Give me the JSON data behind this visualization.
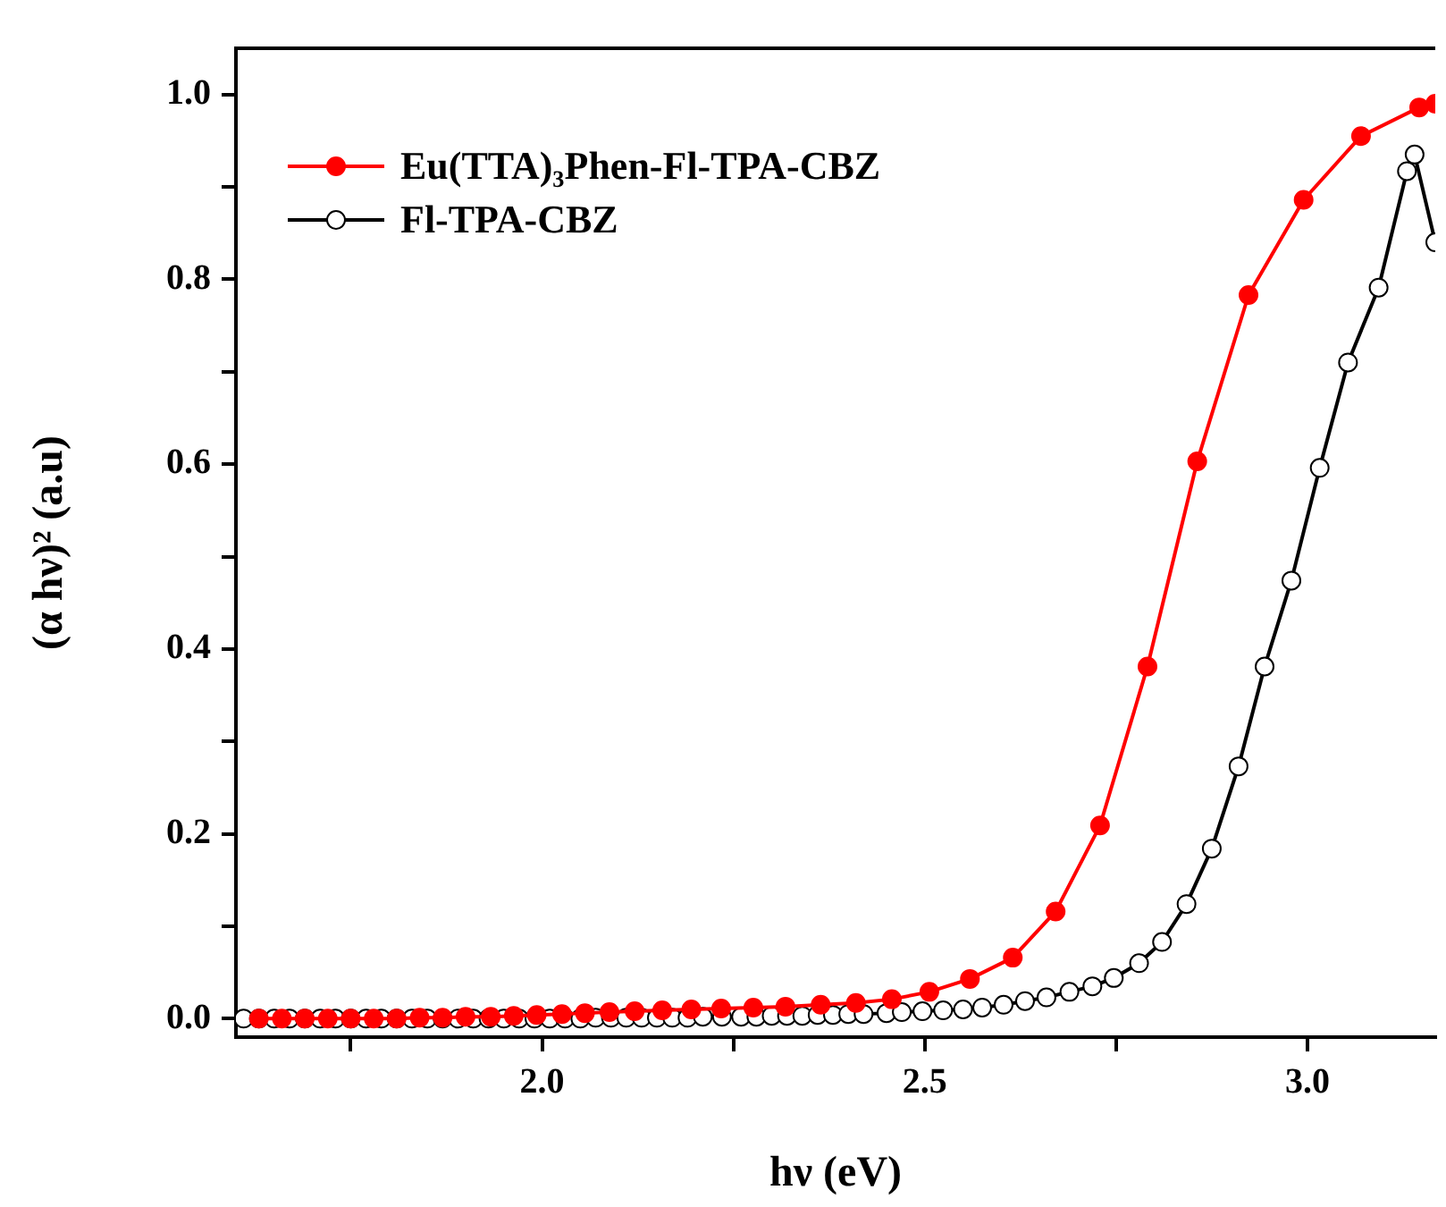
{
  "chart_data": {
    "type": "line",
    "xlabel": "hν (eV)",
    "ylabel": "(α hν)² (a.u)",
    "xlim": [
      1.6,
      3.167
    ],
    "ylim": [
      -0.02,
      1.05
    ],
    "xticks": [
      {
        "value": 1.75,
        "label": null
      },
      {
        "value": 2,
        "label": "2.0"
      },
      {
        "value": 2.25,
        "label": null
      },
      {
        "value": 2.5,
        "label": "2.5"
      },
      {
        "value": 2.75,
        "label": null
      },
      {
        "value": 3,
        "label": "3.0"
      }
    ],
    "yticks": [
      {
        "value": 0,
        "label": "0.0"
      },
      {
        "value": 0.1,
        "label": null
      },
      {
        "value": 0.2,
        "label": "0.2"
      },
      {
        "value": 0.3,
        "label": null
      },
      {
        "value": 0.4,
        "label": "0.4"
      },
      {
        "value": 0.5,
        "label": null
      },
      {
        "value": 0.6,
        "label": "0.6"
      },
      {
        "value": 0.7,
        "label": null
      },
      {
        "value": 0.8,
        "label": "0.8"
      },
      {
        "value": 0.9,
        "label": null
      },
      {
        "value": 1,
        "label": "1.0"
      }
    ],
    "grid": false,
    "legend": "top left",
    "marker": "circle",
    "line_style": "solid",
    "series": [
      {
        "name": "Eu(TTA)₃Phen-Fl-TPA-CBZ",
        "color": "#ff0000",
        "x": [
          1.63,
          1.66,
          1.69,
          1.72,
          1.75,
          1.78,
          1.81,
          1.84,
          1.87,
          1.9,
          1.933,
          1.963,
          1.993,
          2.026,
          2.056,
          2.088,
          2.121,
          2.157,
          2.195,
          2.234,
          2.276,
          2.318,
          2.364,
          2.41,
          2.457,
          2.506,
          2.559,
          2.615,
          2.671,
          2.729,
          2.791,
          2.856,
          2.923,
          2.995,
          3.07,
          3.146,
          3.167
        ],
        "values": [
          0,
          0,
          0,
          0,
          0,
          0,
          0,
          0.001,
          0.001,
          0.002,
          0.002,
          0.003,
          0.004,
          0.005,
          0.006,
          0.007,
          0.008,
          0.009,
          0.01,
          0.011,
          0.012,
          0.013,
          0.015,
          0.017,
          0.021,
          0.029,
          0.043,
          0.066,
          0.116,
          0.209,
          0.381,
          0.603,
          0.783,
          0.886,
          0.955,
          0.986,
          0.99
        ]
      },
      {
        "name": "Fl-TPA-CBZ",
        "color": "#000000",
        "x": [
          1.61,
          1.63,
          1.65,
          1.67,
          1.69,
          1.71,
          1.73,
          1.75,
          1.77,
          1.79,
          1.81,
          1.83,
          1.85,
          1.87,
          1.89,
          1.91,
          1.93,
          1.95,
          1.97,
          1.99,
          2.01,
          2.03,
          2.05,
          2.07,
          2.09,
          2.11,
          2.13,
          2.15,
          2.17,
          2.19,
          2.21,
          2.235,
          2.26,
          2.28,
          2.3,
          2.32,
          2.34,
          2.36,
          2.38,
          2.4,
          2.42,
          2.45,
          2.47,
          2.497,
          2.524,
          2.55,
          2.575,
          2.603,
          2.631,
          2.659,
          2.689,
          2.719,
          2.747,
          2.78,
          2.81,
          2.842,
          2.875,
          2.91,
          2.944,
          2.979,
          3.016,
          3.053,
          3.093,
          3.13,
          3.14,
          3.167
        ],
        "values": [
          0,
          0,
          0,
          0,
          0,
          0,
          0,
          0,
          0,
          0,
          0,
          0,
          0,
          0,
          0,
          0,
          0,
          0,
          0,
          0,
          0,
          0,
          0,
          0.001,
          0.001,
          0.001,
          0.001,
          0.001,
          0.001,
          0.001,
          0.002,
          0.002,
          0.002,
          0.002,
          0.003,
          0.003,
          0.003,
          0.004,
          0.004,
          0.005,
          0.005,
          0.006,
          0.007,
          0.008,
          0.009,
          0.01,
          0.012,
          0.015,
          0.019,
          0.023,
          0.029,
          0.035,
          0.044,
          0.06,
          0.083,
          0.124,
          0.184,
          0.273,
          0.381,
          0.474,
          0.596,
          0.71,
          0.791,
          0.917,
          0.935,
          0.84
        ]
      }
    ]
  }
}
